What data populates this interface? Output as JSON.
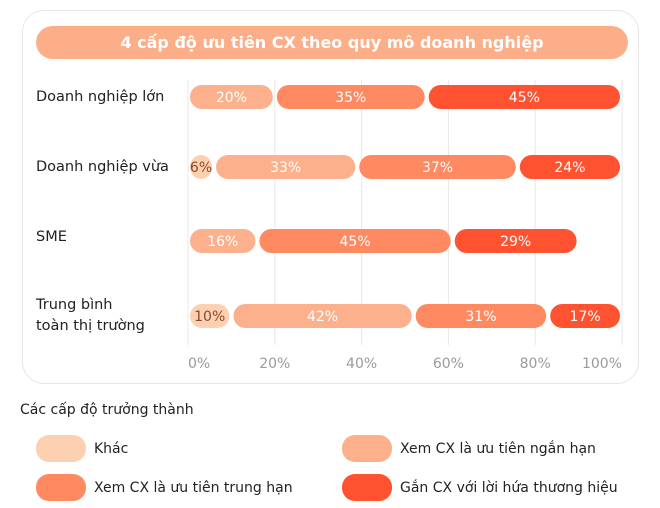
{
  "chart_data": {
    "type": "bar",
    "orientation": "horizontal",
    "stacked": true,
    "title": "4 cấp độ ưu tiên CX theo quy mô doanh nghiệp",
    "categories": [
      "Doanh nghiệp lớn",
      "Doanh nghiệp vừa",
      "SME",
      "Trung bình toàn thị trường"
    ],
    "series": [
      {
        "name": "Khác",
        "color": "#fdd0b1",
        "values": [
          0,
          6,
          0,
          10
        ]
      },
      {
        "name": "Xem CX là ưu tiên ngắn hạn",
        "color": "#fcb08c",
        "values": [
          20,
          33,
          16,
          42
        ]
      },
      {
        "name": "Xem CX là ưu tiên trung hạn",
        "color": "#ff8a62",
        "values": [
          35,
          37,
          45,
          31
        ]
      },
      {
        "name": "Gắn CX với lời hứa thương hiệu",
        "color": "#ff5230",
        "values": [
          45,
          24,
          29,
          17
        ]
      }
    ],
    "row_colors": [
      [
        null,
        "#fcb08c",
        "#ff8a62",
        "#ff5230"
      ],
      [
        "#fdd0b1",
        "#fcb08c",
        "#ff8a62",
        "#ff5230"
      ],
      [
        "#fcb08c",
        "#fcb08c",
        "#ff8a62",
        "#ff5230"
      ],
      [
        "#fdd0b1",
        "#fcb08c",
        "#ff8a62",
        "#ff5230"
      ]
    ],
    "xticks": [
      "0%",
      "20%",
      "40%",
      "60%",
      "80%",
      "100%"
    ],
    "xlim": [
      0,
      100
    ],
    "grid": true,
    "legend_title": "Các cấp độ trưởng thành",
    "legend_position": "bottom"
  },
  "labels": {
    "row0": "Doanh nghiệp lớn",
    "row1": "Doanh nghiệp vừa",
    "row2": "SME",
    "row3a": "Trung bình",
    "row3b": "toàn thị trường"
  }
}
